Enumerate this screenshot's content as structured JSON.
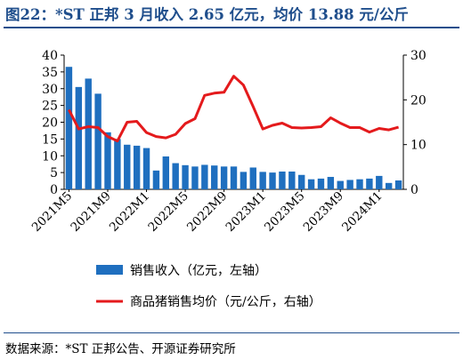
{
  "title": "图22：*ST 正邦 3 月收入 2.65 亿元，均价 13.88 元/公斤",
  "source": "数据来源：*ST 正邦公告、开源证券研究所",
  "colors": {
    "bar": "#1f6fbf",
    "line": "#e41a1c",
    "accent": "#1f4e8c"
  },
  "chart_data": {
    "type": "bar+line",
    "x": [
      "2021M5",
      "2021M6",
      "2021M7",
      "2021M8",
      "2021M9",
      "2021M10",
      "2021M11",
      "2021M12",
      "2022M1",
      "2022M2",
      "2022M3",
      "2022M4",
      "2022M5",
      "2022M6",
      "2022M7",
      "2022M8",
      "2022M9",
      "2022M10",
      "2022M11",
      "2022M12",
      "2023M1",
      "2023M2",
      "2023M3",
      "2023M4",
      "2023M5",
      "2023M6",
      "2023M7",
      "2023M8",
      "2023M9",
      "2023M10",
      "2023M11",
      "2023M12",
      "2024M1",
      "2024M2",
      "2024M3"
    ],
    "x_tick_labels": [
      "2021M5",
      "2021M9",
      "2022M1",
      "2022M5",
      "2022M9",
      "2023M1",
      "2023M5",
      "2023M9",
      "2024M1"
    ],
    "series": [
      {
        "name": "销售收入（亿元，左轴）",
        "type": "bar",
        "axis": "left",
        "values": [
          36.5,
          30.5,
          33,
          28.5,
          17,
          15,
          13.3,
          13,
          12.3,
          5.6,
          9.8,
          7.8,
          7.2,
          6.8,
          7.3,
          7.1,
          6.8,
          6.8,
          5.2,
          6.5,
          5.2,
          5,
          5.3,
          5.3,
          4.3,
          3,
          3.2,
          3.7,
          2.5,
          2.8,
          3,
          3.2,
          4,
          1.9,
          2.65
        ]
      },
      {
        "name": "商品猪销售均价（元/公斤，右轴）",
        "type": "line",
        "axis": "right",
        "values": [
          17.8,
          13.5,
          14,
          13.8,
          11.8,
          10.8,
          15,
          15.2,
          12.7,
          11.8,
          11.5,
          12.3,
          14.7,
          15.8,
          21,
          21.5,
          21.7,
          25.3,
          23.3,
          18.5,
          13.5,
          14.3,
          14.8,
          13.8,
          13.7,
          13.8,
          14,
          16,
          14.8,
          13.8,
          13.8,
          12.8,
          13.6,
          13.3,
          13.88
        ]
      }
    ],
    "y_left": {
      "ticks": [
        0,
        5,
        10,
        15,
        20,
        25,
        30,
        35,
        40
      ],
      "lim": [
        0,
        40
      ]
    },
    "y_right": {
      "ticks": [
        0,
        10,
        20,
        30
      ],
      "lim": [
        0,
        30
      ]
    },
    "legend": {
      "placement": "bottom"
    }
  }
}
